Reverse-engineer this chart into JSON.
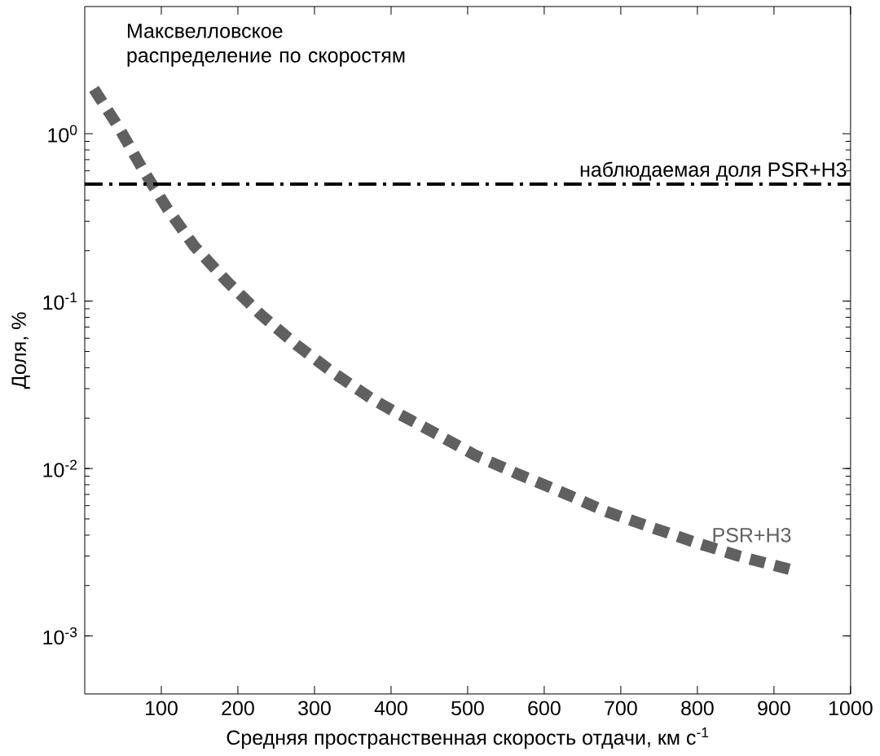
{
  "chart_data": {
    "type": "line",
    "xlabel": "Средняя пространственная скорость отдачи, км с$^{-1}$",
    "ylabel": "Доля, %",
    "x": [
      12,
      45,
      75,
      108,
      143,
      185,
      230,
      276,
      324,
      376,
      402,
      456,
      510,
      566,
      623,
      679,
      736,
      795,
      853,
      920
    ],
    "series": [
      {
        "name": "PSR+H3",
        "color": "#606060",
        "line_style": "dashed",
        "values": [
          1.85,
          1.08,
          0.62,
          0.356,
          0.213,
          0.132,
          0.083,
          0.055,
          0.0375,
          0.0259,
          0.0222,
          0.0164,
          0.012,
          0.00925,
          0.00722,
          0.00558,
          0.00452,
          0.00365,
          0.00301,
          0.0025
        ]
      }
    ],
    "log": "y",
    "marker": "none",
    "grid": false,
    "legend": false,
    "xlim": [
      0,
      1000
    ],
    "xticks": [
      100,
      200,
      300,
      400,
      500,
      600,
      700,
      800,
      900,
      1000
    ],
    "ylim": [
      0.00045,
      5.75
    ],
    "yticks": [
      {
        "value": 0.001,
        "label": "10$^{-3}$"
      },
      {
        "value": 0.01,
        "label": "10$^{-2}$"
      },
      {
        "value": 0.1,
        "label": "10$^{-1}$"
      },
      {
        "value": 1,
        "label": "10$^{0}$"
      }
    ],
    "ref_lines": [
      {
        "axis": "y",
        "value": 0.5,
        "label": "наблюдаемая доля PSR+H3",
        "color": "#000000",
        "line_style": "dashdot"
      }
    ],
    "annotations": [
      "Максвелловское распределение по скоростям"
    ]
  }
}
